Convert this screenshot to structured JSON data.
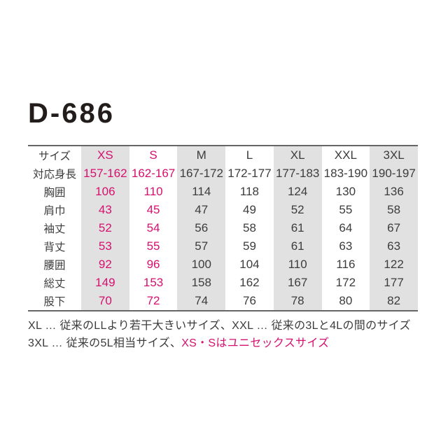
{
  "page": {
    "title": "D-686"
  },
  "colors": {
    "accent": "#d5106e",
    "stripe": "#e1e1e1",
    "text": "#3c3c3c",
    "title": "#221c1a",
    "rule": "#666666",
    "page_bg": "#ffffff"
  },
  "table": {
    "accent_columns": [
      0,
      1
    ],
    "stripe_columns": [
      0,
      2,
      4,
      6
    ],
    "rows": [
      {
        "label": "サイズ",
        "values": [
          "XS",
          "S",
          "M",
          "L",
          "XL",
          "XXL",
          "3XL"
        ]
      },
      {
        "label": "対応身長",
        "values": [
          "157-162",
          "162-167",
          "167-172",
          "172-177",
          "177-183",
          "183-190",
          "190-197"
        ]
      },
      {
        "label": "胸囲",
        "values": [
          "106",
          "110",
          "114",
          "118",
          "124",
          "130",
          "136"
        ]
      },
      {
        "label": "肩巾",
        "values": [
          "43",
          "45",
          "47",
          "49",
          "52",
          "55",
          "58"
        ]
      },
      {
        "label": "袖丈",
        "values": [
          "52",
          "54",
          "56",
          "58",
          "61",
          "64",
          "67"
        ]
      },
      {
        "label": "背丈",
        "values": [
          "53",
          "55",
          "57",
          "59",
          "61",
          "63",
          "63"
        ]
      },
      {
        "label": "腰囲",
        "values": [
          "92",
          "96",
          "100",
          "104",
          "110",
          "116",
          "122"
        ]
      },
      {
        "label": "総丈",
        "values": [
          "149",
          "153",
          "158",
          "162",
          "167",
          "172",
          "177"
        ]
      },
      {
        "label": "股下",
        "values": [
          "70",
          "72",
          "74",
          "76",
          "78",
          "80",
          "82"
        ]
      }
    ]
  },
  "footnotes": [
    {
      "segments": [
        {
          "text": "XL … 従来のLLより若干大きいサイズ、XXL … 従来の3Lと4Lの間のサイズ",
          "accent": false
        }
      ]
    },
    {
      "segments": [
        {
          "text": "3XL … 従来の5L相当サイズ、",
          "accent": false
        },
        {
          "text": "XS・Sはユニセックスサイズ",
          "accent": true
        }
      ]
    }
  ]
}
